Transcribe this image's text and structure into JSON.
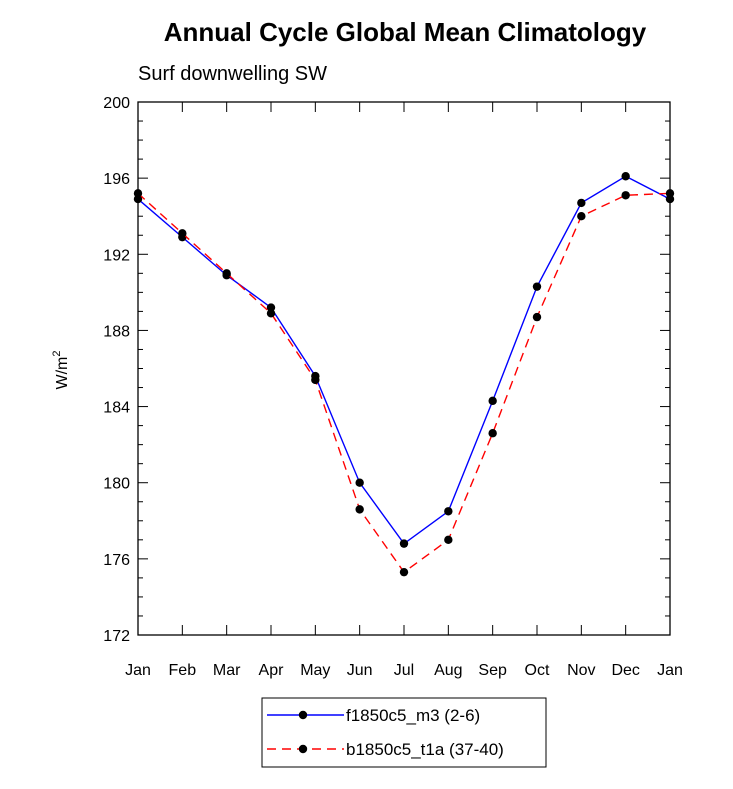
{
  "chart_data": {
    "type": "line",
    "title": "Annual Cycle Global Mean Climatology",
    "subtitle": "Surf downwelling SW",
    "ylabel": "W/m",
    "ylabel_sup": "2",
    "xlabel": "",
    "categories": [
      "Jan",
      "Feb",
      "Mar",
      "Apr",
      "May",
      "Jun",
      "Jul",
      "Aug",
      "Sep",
      "Oct",
      "Nov",
      "Dec",
      "Jan"
    ],
    "ylim": [
      172,
      200
    ],
    "yticks": [
      172,
      176,
      180,
      184,
      188,
      192,
      196,
      200
    ],
    "series": [
      {
        "name": "f1850c5_m3 (2-6)",
        "color": "#0000ff",
        "dash": "solid",
        "values": [
          194.9,
          192.9,
          190.9,
          189.2,
          185.6,
          180.0,
          176.8,
          178.5,
          184.3,
          190.3,
          194.7,
          196.1,
          194.9
        ]
      },
      {
        "name": "b1850c5_t1a (37-40)",
        "color": "#ff0000",
        "dash": "dashed",
        "values": [
          195.2,
          193.1,
          191.0,
          188.9,
          185.4,
          178.6,
          175.3,
          177.0,
          182.6,
          188.7,
          194.0,
          195.1,
          195.2
        ]
      }
    ],
    "legend": {
      "position": "bottom-center"
    }
  }
}
